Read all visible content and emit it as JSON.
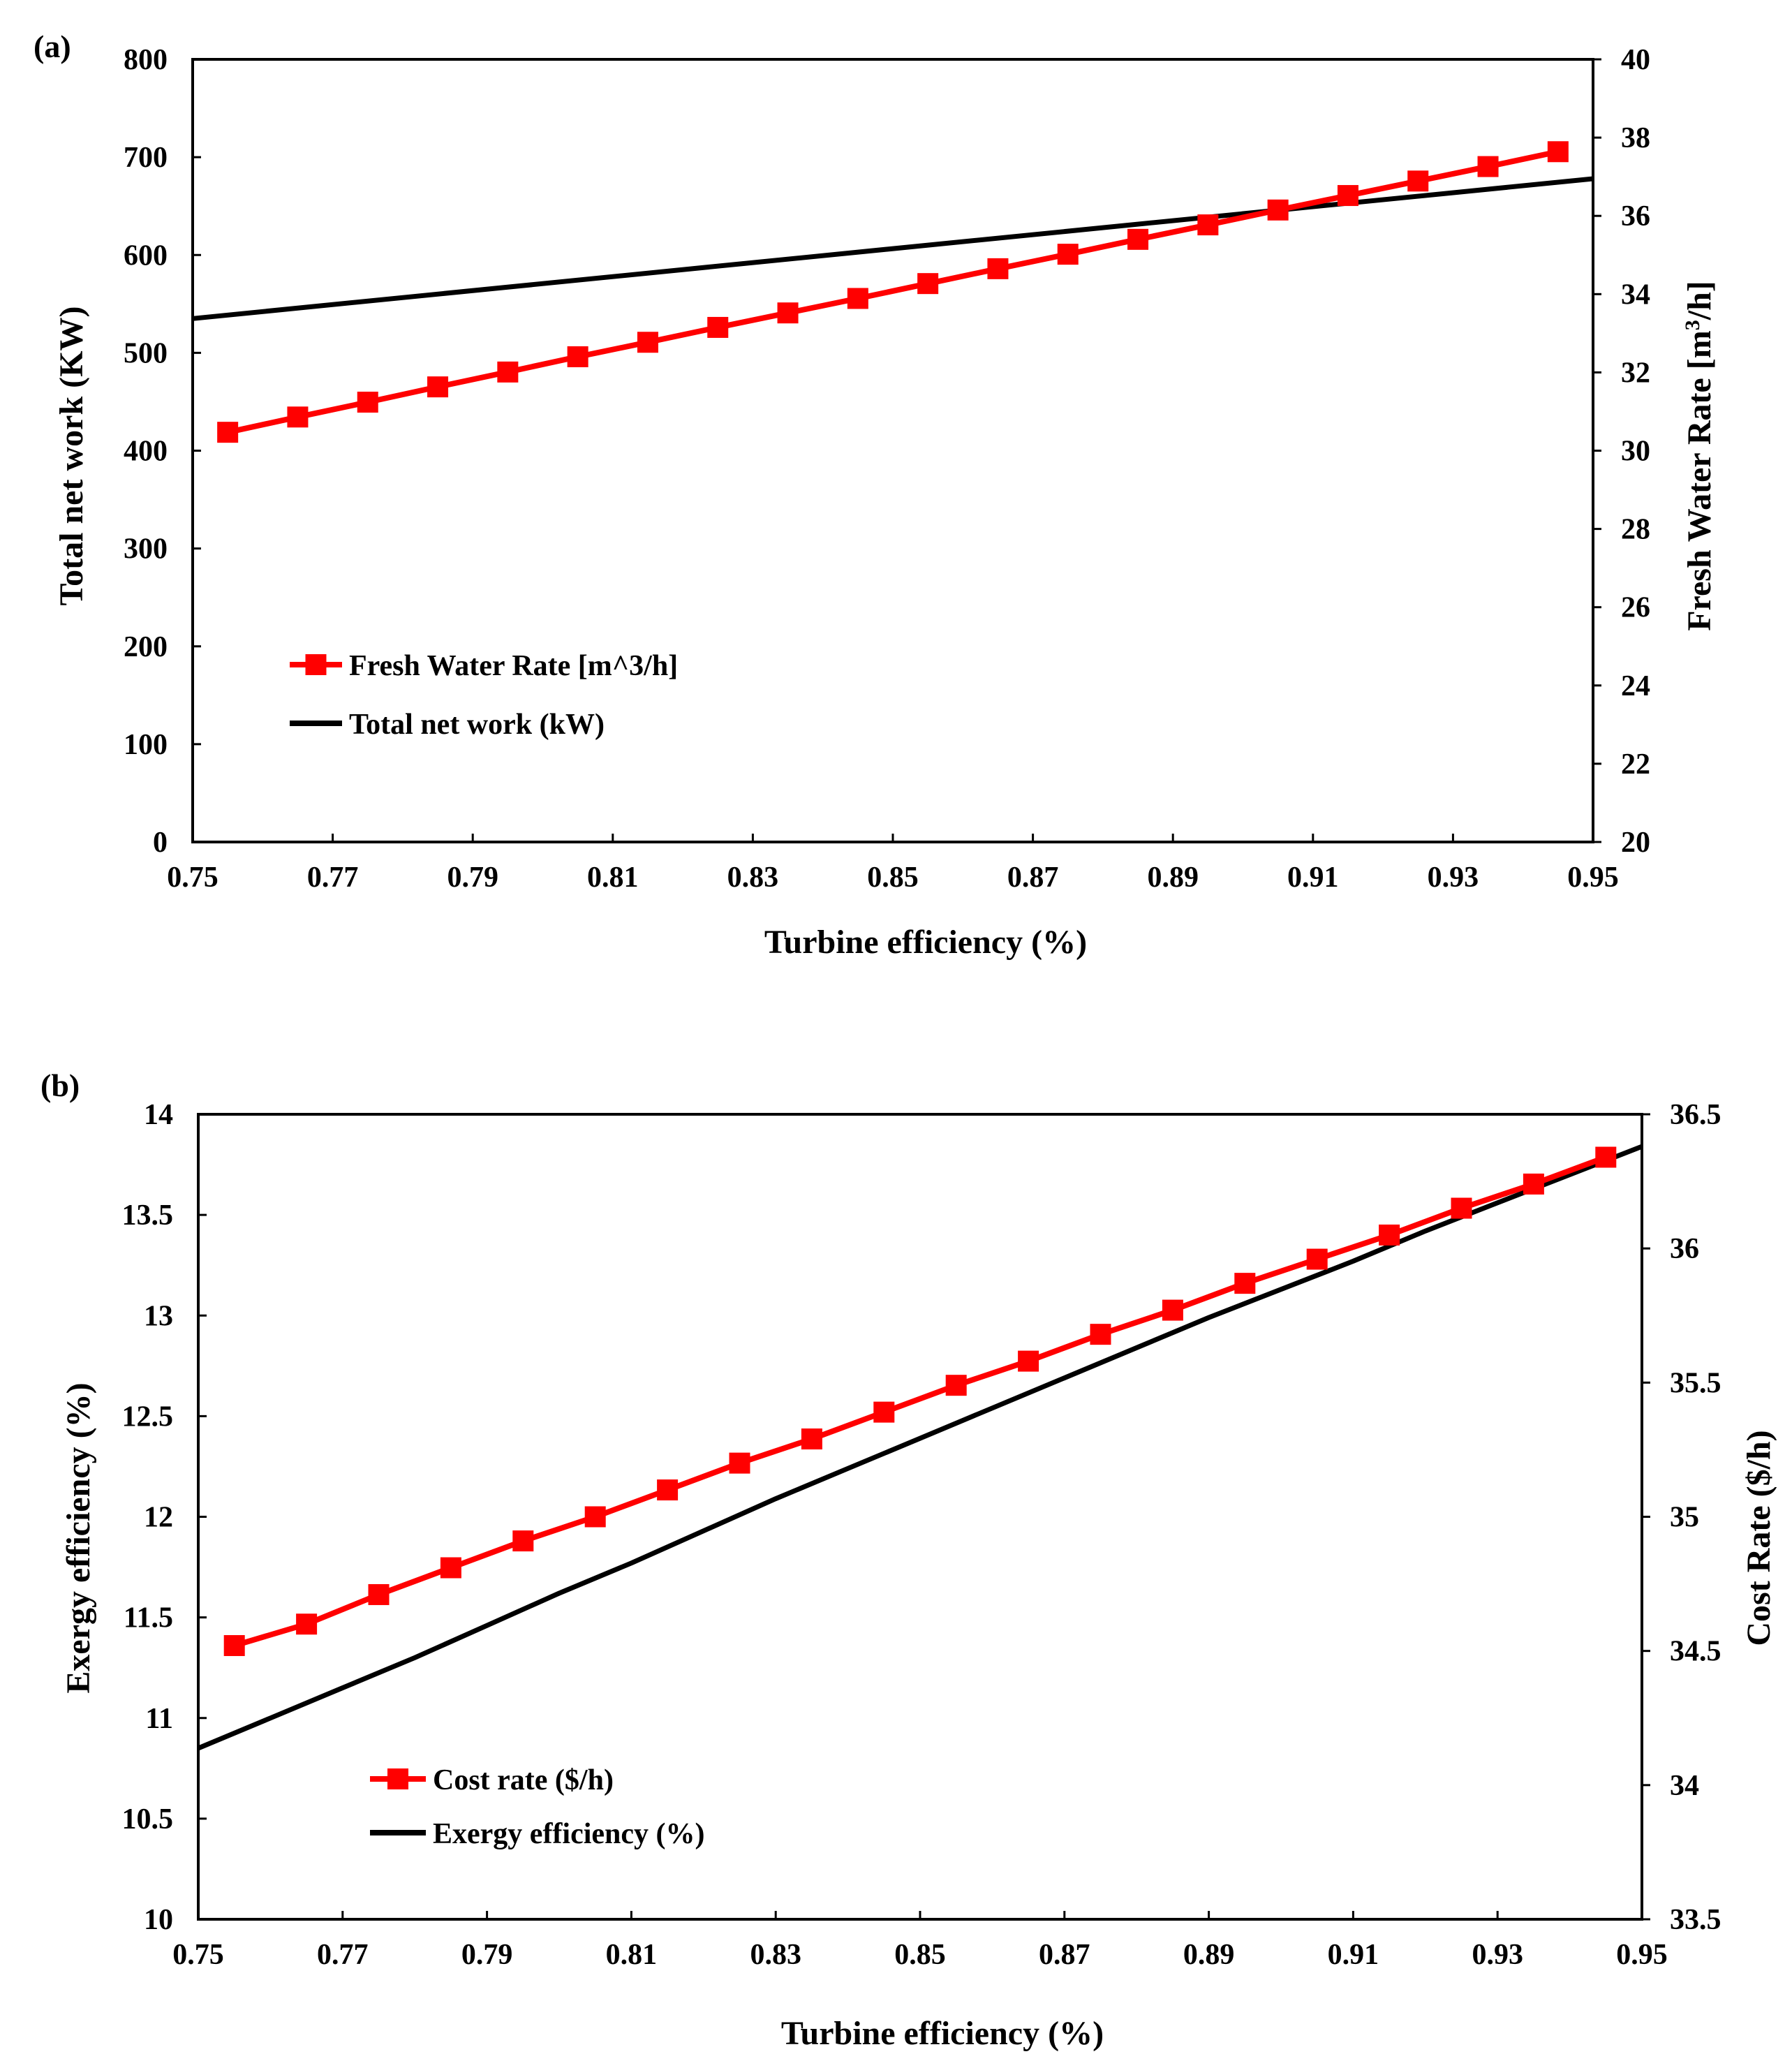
{
  "figure": {
    "panels": [
      "(a)",
      "(b)"
    ]
  },
  "chart_data": [
    {
      "type": "line",
      "panel_label": "(a)",
      "xlabel": "Turbine efficiency (%)",
      "xlim": [
        0.75,
        0.95
      ],
      "xticks": [
        "0.75",
        "0.77",
        "0.79",
        "0.81",
        "0.83",
        "0.85",
        "0.87",
        "0.89",
        "0.91",
        "0.93",
        "0.95"
      ],
      "ylabel_left": "Total net work (KW)",
      "ylim_left": [
        0,
        800
      ],
      "yticks_left": [
        "0",
        "100",
        "200",
        "300",
        "400",
        "500",
        "600",
        "700",
        "800"
      ],
      "ylabel_right_main": "Fresh Water Rate  [m",
      "ylabel_right_sup": "3",
      "ylabel_right_tail": "/h]",
      "ylim_right": [
        20,
        40
      ],
      "yticks_right": [
        "20",
        "22",
        "24",
        "26",
        "28",
        "30",
        "32",
        "34",
        "36",
        "38",
        "40"
      ],
      "legend_position": "center-left",
      "series": [
        {
          "name": "Fresh Water Rate  [m^3/h]",
          "axis": "right",
          "color": "#ff0000",
          "marker": "square",
          "x": [
            0.755,
            0.765,
            0.775,
            0.785,
            0.795,
            0.805,
            0.815,
            0.825,
            0.835,
            0.845,
            0.855,
            0.865,
            0.875,
            0.885,
            0.895,
            0.905,
            0.915,
            0.925,
            0.935,
            0.945
          ],
          "values": [
            30.47,
            30.86,
            31.24,
            31.63,
            32.01,
            32.4,
            32.77,
            33.15,
            33.52,
            33.89,
            34.27,
            34.65,
            35.02,
            35.4,
            35.77,
            36.15,
            36.52,
            36.89,
            37.26,
            37.64
          ]
        },
        {
          "name": "Total net work (kW)",
          "axis": "left",
          "color": "#000000",
          "marker": "none",
          "x": [
            0.75,
            0.95
          ],
          "values": [
            535,
            678
          ]
        }
      ]
    },
    {
      "type": "line",
      "panel_label": "(b)",
      "xlabel": "Turbine efficiency (%)",
      "xlim": [
        0.75,
        0.95
      ],
      "xticks": [
        "0.75",
        "0.77",
        "0.79",
        "0.81",
        "0.83",
        "0.85",
        "0.87",
        "0.89",
        "0.91",
        "0.93",
        "0.95"
      ],
      "ylabel_left": "Exergy efficiency (%)",
      "ylim_left": [
        10,
        14
      ],
      "yticks_left": [
        "10",
        "10.5",
        "11",
        "11.5",
        "12",
        "12.5",
        "13",
        "13.5",
        "14"
      ],
      "ylabel_right": "Cost Rate ($/h)",
      "ylim_right": [
        33.5,
        36.5
      ],
      "yticks_right": [
        "33.5",
        "34",
        "34.5",
        "35",
        "35.5",
        "36",
        "36.5"
      ],
      "legend_position": "bottom-left",
      "series": [
        {
          "name": "Cost rate ($/h)",
          "axis": "right",
          "color": "#ff0000",
          "marker": "square",
          "x": [
            0.755,
            0.765,
            0.775,
            0.785,
            0.795,
            0.805,
            0.815,
            0.825,
            0.835,
            0.845,
            0.855,
            0.865,
            0.875,
            0.885,
            0.895,
            0.905,
            0.915,
            0.925,
            0.935,
            0.945
          ],
          "values": [
            34.52,
            34.6,
            34.71,
            34.81,
            34.91,
            35.0,
            35.1,
            35.2,
            35.29,
            35.39,
            35.49,
            35.58,
            35.68,
            35.77,
            35.87,
            35.96,
            36.05,
            36.15,
            36.24,
            36.34
          ]
        },
        {
          "name": "Exergy efficiency (%)",
          "axis": "left",
          "color": "#000000",
          "marker": "none",
          "x": [
            0.75,
            0.76,
            0.77,
            0.78,
            0.79,
            0.8,
            0.81,
            0.82,
            0.83,
            0.84,
            0.85,
            0.86,
            0.87,
            0.88,
            0.89,
            0.9,
            0.91,
            0.92,
            0.93,
            0.94,
            0.95
          ],
          "values": [
            10.85,
            11.0,
            11.15,
            11.3,
            11.46,
            11.62,
            11.77,
            11.93,
            12.09,
            12.24,
            12.39,
            12.54,
            12.69,
            12.84,
            12.99,
            13.13,
            13.27,
            13.42,
            13.56,
            13.7,
            13.84
          ]
        }
      ]
    }
  ]
}
